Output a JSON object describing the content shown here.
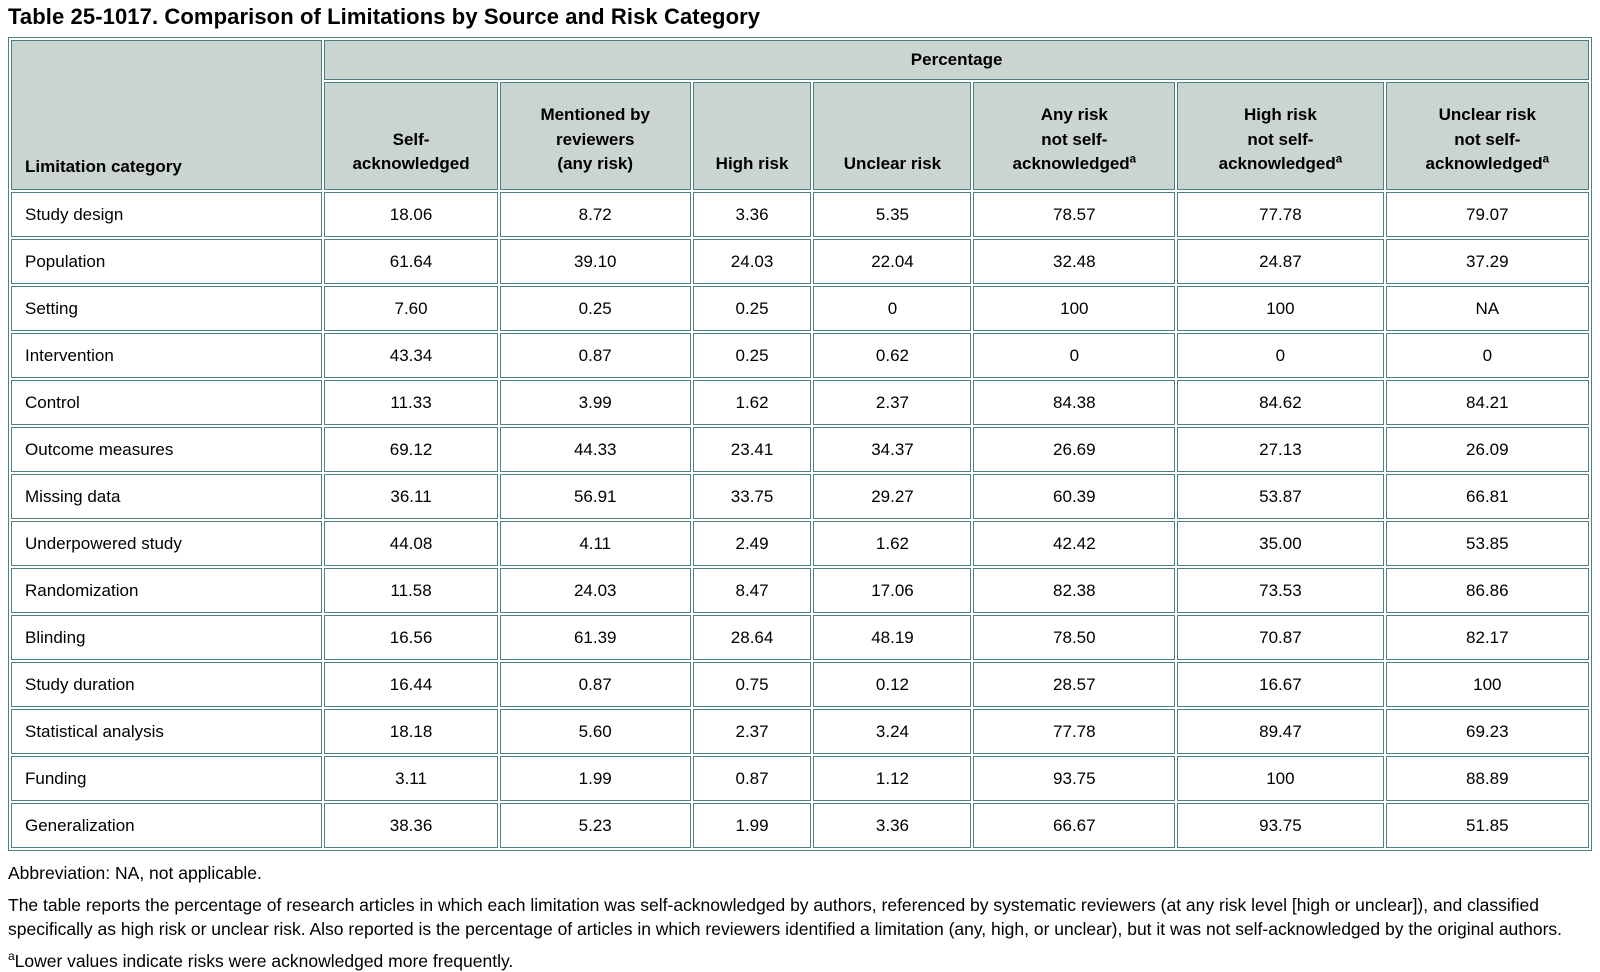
{
  "title": "Table 25-1017. Comparison of Limitations by Source and Risk Category",
  "colors": {
    "header_bg": "#cad4d1",
    "border": "#4e8080",
    "text": "#000000"
  },
  "table": {
    "corner_header": "Limitation category",
    "group_header": "Percentage",
    "columns": [
      {
        "label": "Self-acknowledged",
        "lines": [
          "Self-",
          "acknowledged"
        ],
        "footnote_marker": ""
      },
      {
        "label": "Mentioned by reviewers (any risk)",
        "lines": [
          "Mentioned by",
          "reviewers",
          "(any risk)"
        ],
        "footnote_marker": ""
      },
      {
        "label": "High risk",
        "lines": [
          "High risk"
        ],
        "footnote_marker": ""
      },
      {
        "label": "Unclear risk",
        "lines": [
          "Unclear risk"
        ],
        "footnote_marker": ""
      },
      {
        "label": "Any risk not self-acknowledged",
        "lines": [
          "Any risk",
          "not self-",
          "acknowledged"
        ],
        "footnote_marker": "a"
      },
      {
        "label": "High risk not self-acknowledged",
        "lines": [
          "High risk",
          "not self-",
          "acknowledged"
        ],
        "footnote_marker": "a"
      },
      {
        "label": "Unclear risk not self-acknowledged",
        "lines": [
          "Unclear risk",
          "not self-",
          "acknowledged"
        ],
        "footnote_marker": "a"
      }
    ],
    "rows": [
      {
        "category": "Study design",
        "values": [
          "18.06",
          "8.72",
          "3.36",
          "5.35",
          "78.57",
          "77.78",
          "79.07"
        ]
      },
      {
        "category": "Population",
        "values": [
          "61.64",
          "39.10",
          "24.03",
          "22.04",
          "32.48",
          "24.87",
          "37.29"
        ]
      },
      {
        "category": "Setting",
        "values": [
          "7.60",
          "0.25",
          "0.25",
          "0",
          "100",
          "100",
          "NA"
        ]
      },
      {
        "category": "Intervention",
        "values": [
          "43.34",
          "0.87",
          "0.25",
          "0.62",
          "0",
          "0",
          "0"
        ]
      },
      {
        "category": "Control",
        "values": [
          "11.33",
          "3.99",
          "1.62",
          "2.37",
          "84.38",
          "84.62",
          "84.21"
        ]
      },
      {
        "category": "Outcome measures",
        "values": [
          "69.12",
          "44.33",
          "23.41",
          "34.37",
          "26.69",
          "27.13",
          "26.09"
        ]
      },
      {
        "category": "Missing data",
        "values": [
          "36.11",
          "56.91",
          "33.75",
          "29.27",
          "60.39",
          "53.87",
          "66.81"
        ]
      },
      {
        "category": "Underpowered study",
        "values": [
          "44.08",
          "4.11",
          "2.49",
          "1.62",
          "42.42",
          "35.00",
          "53.85"
        ]
      },
      {
        "category": "Randomization",
        "values": [
          "11.58",
          "24.03",
          "8.47",
          "17.06",
          "82.38",
          "73.53",
          "86.86"
        ]
      },
      {
        "category": "Blinding",
        "values": [
          "16.56",
          "61.39",
          "28.64",
          "48.19",
          "78.50",
          "70.87",
          "82.17"
        ]
      },
      {
        "category": "Study duration",
        "values": [
          "16.44",
          "0.87",
          "0.75",
          "0.12",
          "28.57",
          "16.67",
          "100"
        ]
      },
      {
        "category": "Statistical analysis",
        "values": [
          "18.18",
          "5.60",
          "2.37",
          "3.24",
          "77.78",
          "89.47",
          "69.23"
        ]
      },
      {
        "category": "Funding",
        "values": [
          "3.11",
          "1.99",
          "0.87",
          "1.12",
          "93.75",
          "100",
          "88.89"
        ]
      },
      {
        "category": "Generalization",
        "values": [
          "38.36",
          "5.23",
          "1.99",
          "3.36",
          "66.67",
          "93.75",
          "51.85"
        ]
      }
    ]
  },
  "notes": {
    "abbreviation": "Abbreviation: NA, not applicable.",
    "description": "The table reports the percentage of research articles in which each limitation was self-acknowledged by authors, referenced by systematic reviewers (at any risk level [high or unclear]), and classified specifically as high risk or unclear risk. Also reported is the percentage of articles in which reviewers identified a limitation (any, high, or unclear), but it was not self-acknowledged by the original authors.",
    "footnote_marker": "a",
    "footnote_text": "Lower values indicate risks were acknowledged more frequently."
  }
}
